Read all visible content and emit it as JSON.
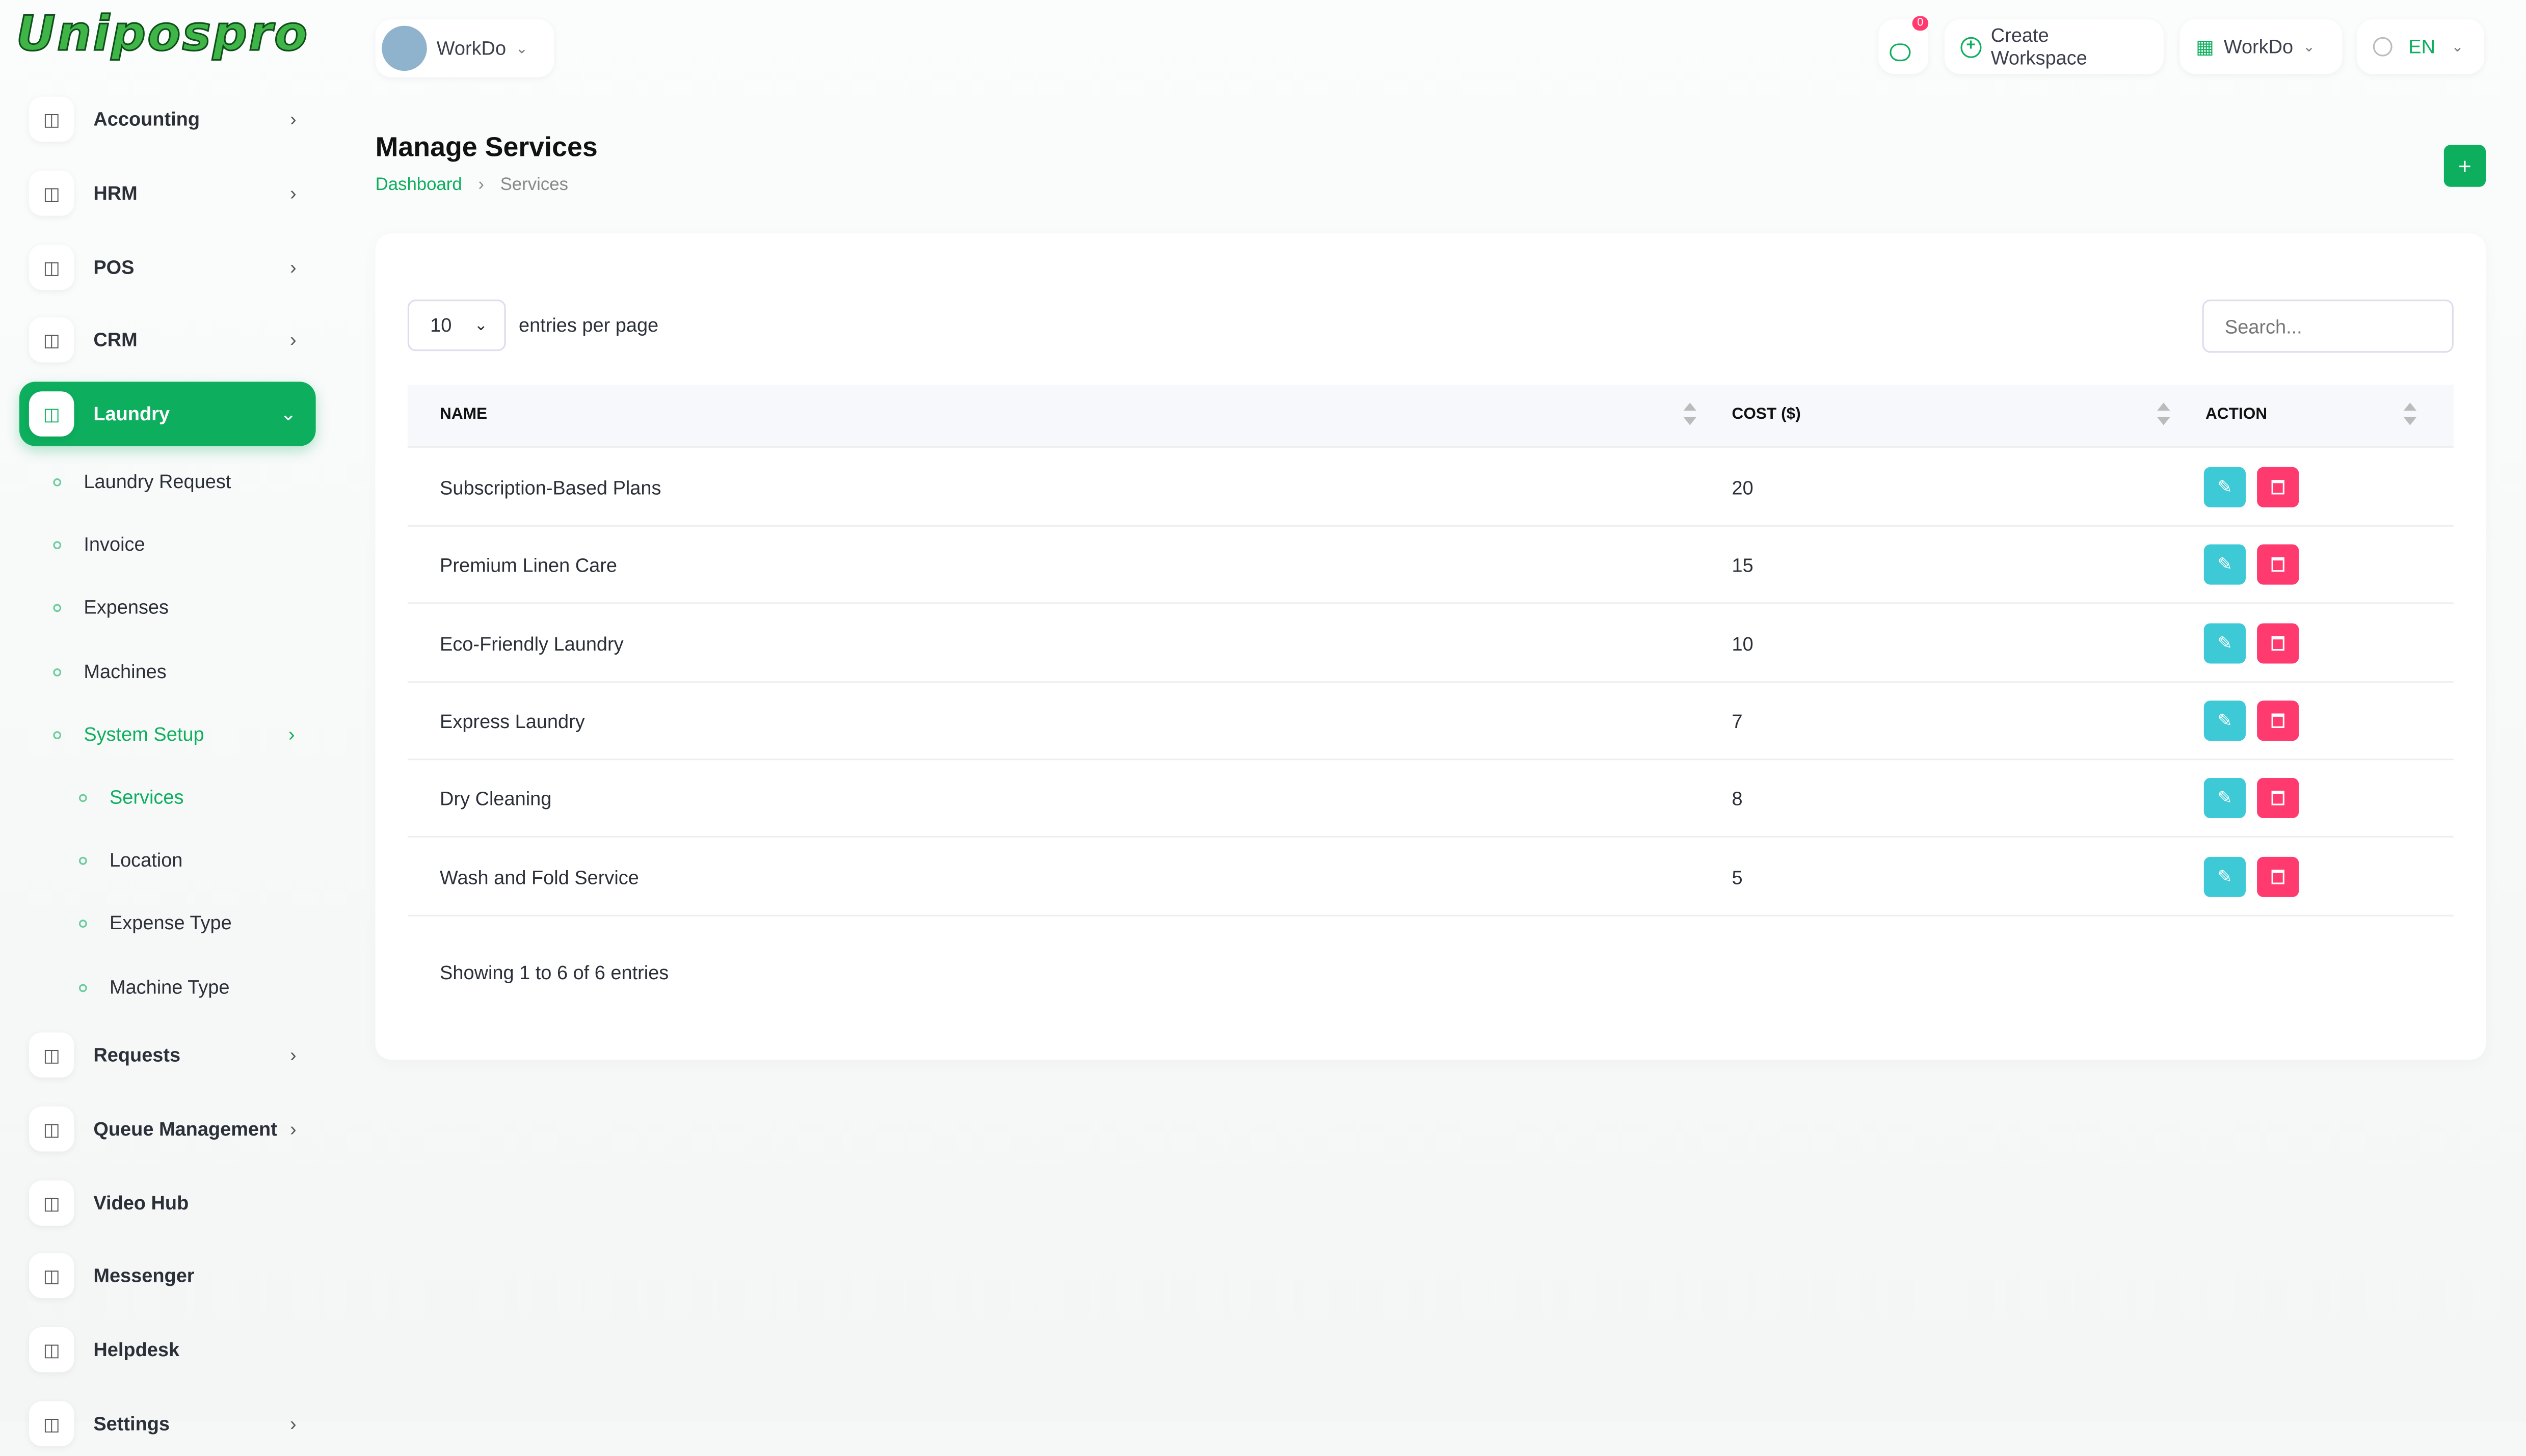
{
  "brand": {
    "logo": "Unipospro"
  },
  "header": {
    "workspace": "WorkDo",
    "notifications_count": "0",
    "create_workspace": "Create Workspace",
    "workspace_menu": "WorkDo",
    "language": "EN"
  },
  "sidebar": {
    "items": [
      {
        "label": "Accounting",
        "icon": "accounting-icon"
      },
      {
        "label": "HRM",
        "icon": "hrm-icon"
      },
      {
        "label": "POS",
        "icon": "pos-icon"
      },
      {
        "label": "CRM",
        "icon": "crm-icon"
      },
      {
        "label": "Laundry",
        "icon": "shirt-icon",
        "active": true
      }
    ],
    "laundry_sub": [
      "Laundry Request",
      "Invoice",
      "Expenses",
      "Machines",
      "System Setup"
    ],
    "system_setup_sub": [
      "Services",
      "Location",
      "Expense Type",
      "Machine Type"
    ],
    "items_bottom": [
      {
        "label": "Requests",
        "icon": "user-plus-icon",
        "chevron": true
      },
      {
        "label": "Queue Management",
        "icon": "phone-icon",
        "chevron": true
      },
      {
        "label": "Video Hub",
        "icon": "video-icon",
        "chevron": false
      },
      {
        "label": "Messenger",
        "icon": "chat-icon",
        "chevron": false
      },
      {
        "label": "Helpdesk",
        "icon": "headset-icon",
        "chevron": false
      },
      {
        "label": "Settings",
        "icon": "gear-icon",
        "chevron": true
      }
    ]
  },
  "page": {
    "title": "Manage Services",
    "breadcrumb": [
      "Dashboard",
      "Services"
    ],
    "add_label": "+"
  },
  "table": {
    "entries_value": "10",
    "entries_label": "entries per page",
    "search_placeholder": "Search...",
    "columns": [
      "NAME",
      "COST ($)",
      "ACTION"
    ],
    "rows": [
      {
        "name": "Subscription-Based Plans",
        "cost": "20"
      },
      {
        "name": "Premium Linen Care",
        "cost": "15"
      },
      {
        "name": "Eco-Friendly Laundry",
        "cost": "10"
      },
      {
        "name": "Express Laundry",
        "cost": "7"
      },
      {
        "name": "Dry Cleaning",
        "cost": "8"
      },
      {
        "name": "Wash and Fold Service",
        "cost": "5"
      }
    ],
    "footer": "Showing 1 to 6 of 6 entries"
  },
  "colors": {
    "accent": "#0dae5d",
    "edit": "#3ec9d6",
    "delete": "#ff3a6e"
  }
}
